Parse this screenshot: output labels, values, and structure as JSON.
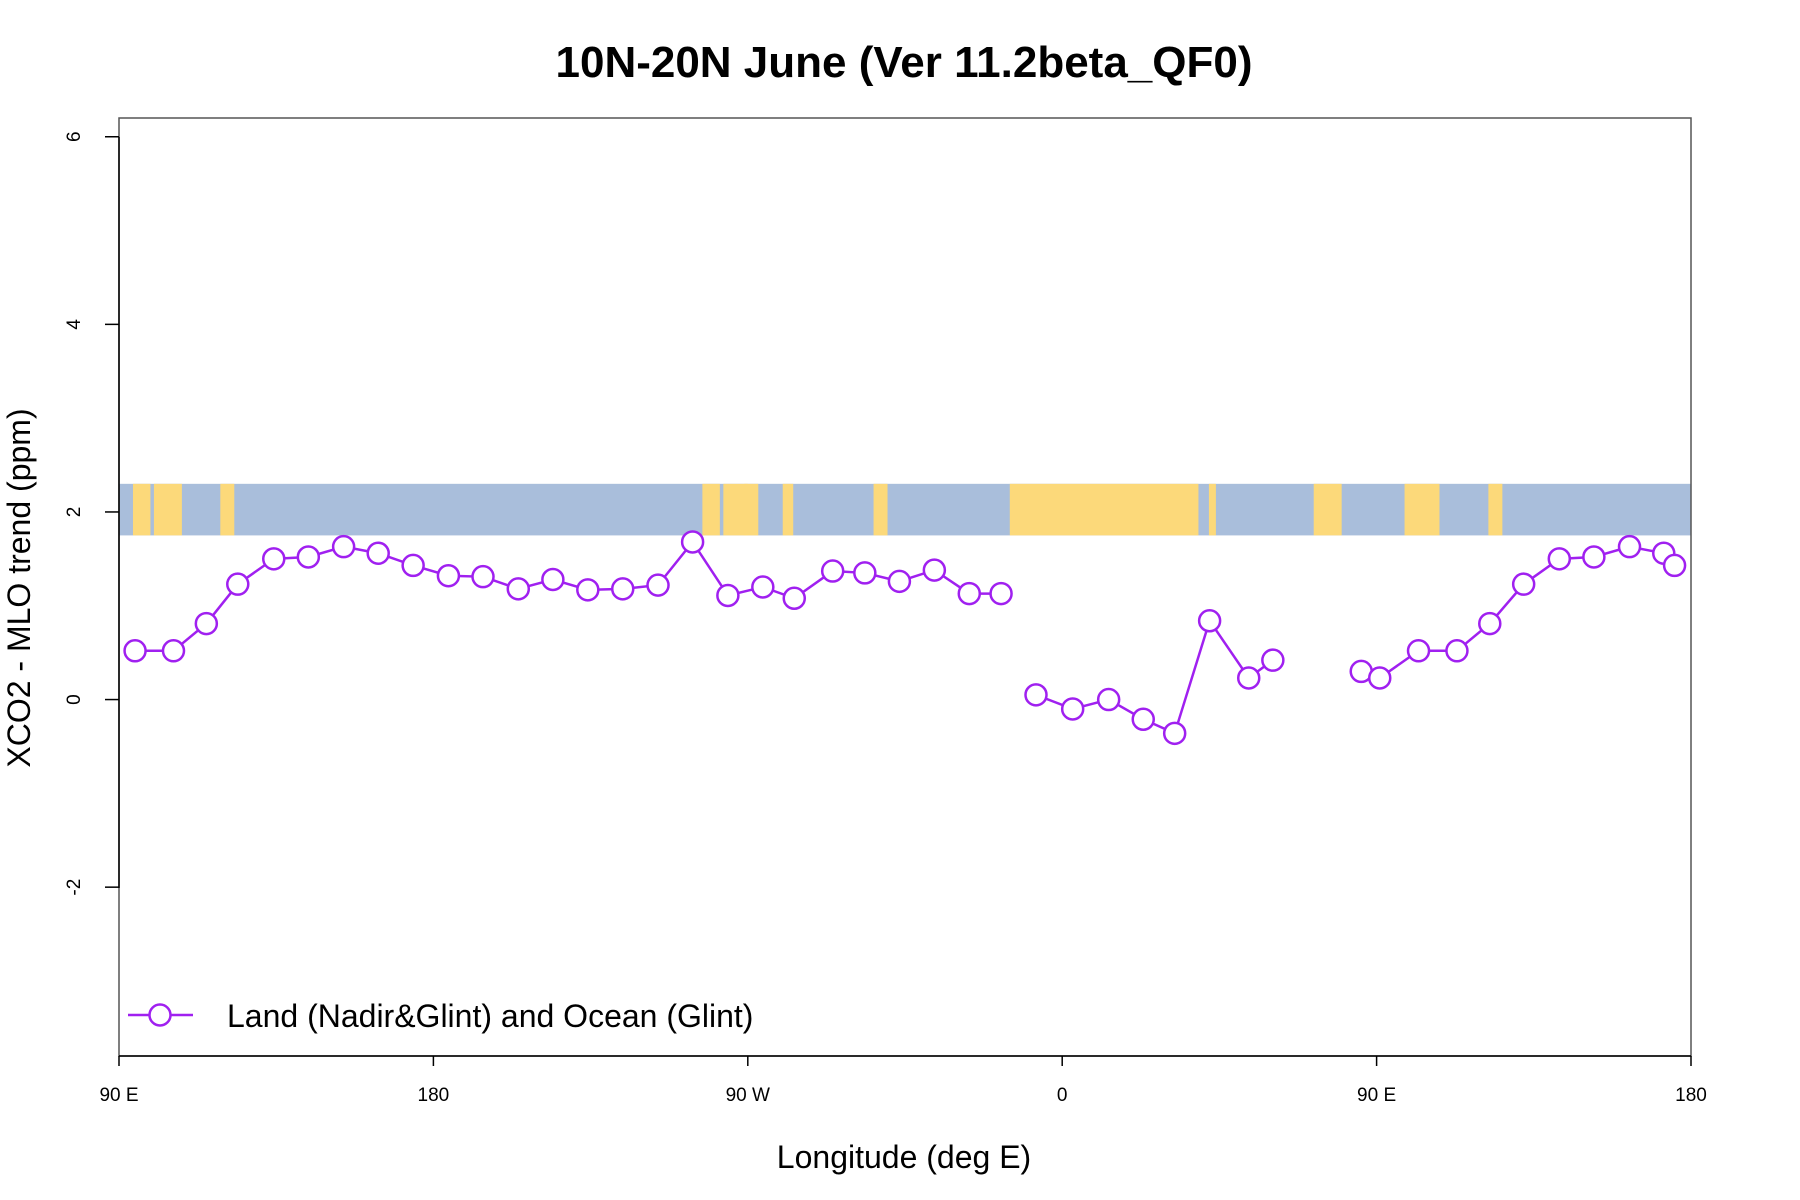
{
  "chart_data": {
    "type": "line",
    "title": "10N-20N June (Ver 11.2beta_QF0)",
    "xlabel": "Longitude (deg E)",
    "ylabel": "XCO2 - MLO trend (ppm)",
    "xlim": [
      90,
      540
    ],
    "ylim": [
      -3.8,
      6.2
    ],
    "x_ticks": [
      {
        "value": 90,
        "label": "90 E"
      },
      {
        "value": 180,
        "label": "180"
      },
      {
        "value": 270,
        "label": "90 W"
      },
      {
        "value": 360,
        "label": "0"
      },
      {
        "value": 450,
        "label": "90 E"
      },
      {
        "value": 540,
        "label": "180"
      }
    ],
    "y_ticks": [
      {
        "value": -2,
        "label": "-2"
      },
      {
        "value": 0,
        "label": "0"
      },
      {
        "value": 2,
        "label": "2"
      },
      {
        "value": 4,
        "label": "4"
      },
      {
        "value": 6,
        "label": "6"
      }
    ],
    "map_strip": {
      "y_range": [
        1.75,
        2.3
      ],
      "ocean_color": "#a9bedb",
      "land_color": "#fcd97a",
      "land_spans_deg": [
        [
          94,
          99
        ],
        [
          100,
          108
        ],
        [
          119,
          123
        ],
        [
          257,
          262
        ],
        [
          263,
          270
        ],
        [
          269,
          273
        ],
        [
          280,
          283
        ],
        [
          306,
          310
        ],
        [
          345,
          399
        ],
        [
          402,
          404
        ],
        [
          432,
          440
        ],
        [
          458,
          468
        ],
        [
          482,
          486
        ]
      ]
    },
    "series": [
      {
        "name": "Land (Nadir&Glint) and Ocean (Glint)",
        "color": "#a020f0",
        "x": [
          94.6,
          105.6,
          115,
          124,
          134.3,
          144.2,
          154.3,
          164.2,
          174.2,
          184.3,
          194.2,
          204.3,
          214.2,
          224.2,
          234.2,
          244.3,
          254.2,
          264.3,
          274.3,
          283.3,
          294.3,
          303.5,
          313.4,
          323.4,
          333.4,
          342.5,
          null,
          352.5,
          363,
          373.3,
          383.2,
          392.2,
          402.2,
          413.4,
          420.3,
          null,
          445.6,
          450.9,
          462,
          473,
          482.4,
          492.1,
          502.3,
          512.2,
          522.4,
          532.2,
          535.3
        ],
        "values": [
          0.52,
          0.52,
          0.81,
          1.23,
          1.5,
          1.52,
          1.63,
          1.56,
          1.43,
          1.32,
          1.31,
          1.18,
          1.28,
          1.17,
          1.18,
          1.22,
          1.68,
          1.11,
          1.2,
          1.08,
          1.37,
          1.35,
          1.26,
          1.38,
          1.13,
          1.13,
          null,
          0.05,
          -0.1,
          0.0,
          -0.21,
          -0.36,
          0.84,
          0.23,
          0.42,
          null,
          0.3,
          0.23,
          0.52,
          0.52,
          0.81,
          1.23,
          1.5,
          1.52,
          1.63,
          1.56,
          1.43
        ]
      }
    ],
    "legend": {
      "position": "bottom-left",
      "label": "Land (Nadir&Glint) and Ocean (Glint)"
    }
  }
}
